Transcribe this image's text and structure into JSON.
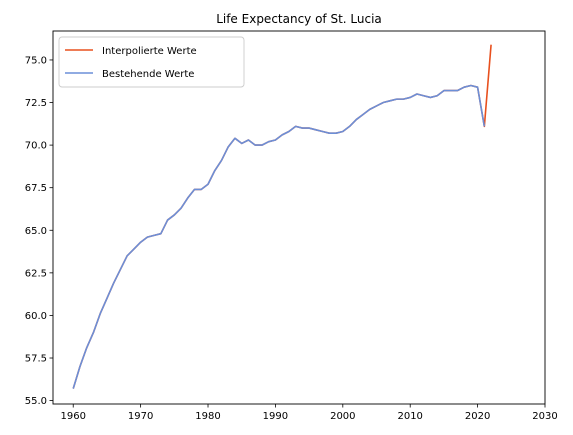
{
  "chart_data": {
    "type": "line",
    "title": "Life Expectancy of St. Lucia",
    "xlabel": "",
    "ylabel": "",
    "xlim": [
      1957,
      2030
    ],
    "ylim": [
      54.8,
      76.7
    ],
    "xticks": [
      1960,
      1970,
      1980,
      1990,
      2000,
      2010,
      2020,
      2030
    ],
    "yticks": [
      55.0,
      57.5,
      60.0,
      62.5,
      65.0,
      67.5,
      70.0,
      72.5,
      75.0
    ],
    "grid": false,
    "legend_position": "top-left",
    "series": [
      {
        "name": "Interpolierte Werte",
        "color": "#e8501e",
        "x": [
          1960,
          1961,
          1962,
          1963,
          1964,
          1965,
          1966,
          1967,
          1968,
          1969,
          1970,
          1971,
          1972,
          1973,
          1974,
          1975,
          1976,
          1977,
          1978,
          1979,
          1980,
          1981,
          1982,
          1983,
          1984,
          1985,
          1986,
          1987,
          1988,
          1989,
          1990,
          1991,
          1992,
          1993,
          1994,
          1995,
          1996,
          1997,
          1998,
          1999,
          2000,
          2001,
          2002,
          2003,
          2004,
          2005,
          2006,
          2007,
          2008,
          2009,
          2010,
          2011,
          2012,
          2013,
          2014,
          2015,
          2016,
          2017,
          2018,
          2019,
          2020,
          2021,
          2022
        ],
        "y": [
          55.7,
          57.0,
          58.1,
          59.0,
          60.1,
          61.0,
          61.9,
          62.7,
          63.5,
          63.9,
          64.3,
          64.6,
          64.7,
          64.8,
          65.6,
          65.9,
          66.3,
          66.9,
          67.4,
          67.4,
          67.7,
          68.5,
          69.1,
          69.9,
          70.4,
          70.1,
          70.3,
          70.0,
          70.0,
          70.2,
          70.3,
          70.6,
          70.8,
          71.1,
          71.0,
          71.0,
          70.9,
          70.8,
          70.7,
          70.7,
          70.8,
          71.1,
          71.5,
          71.8,
          72.1,
          72.3,
          72.5,
          72.6,
          72.7,
          72.7,
          72.8,
          73.0,
          72.9,
          72.8,
          72.9,
          73.2,
          73.2,
          73.2,
          73.4,
          73.5,
          73.4,
          71.1,
          75.9
        ]
      },
      {
        "name": "Bestehende Werte",
        "color": "#6b8fd8",
        "x": [
          1960,
          1961,
          1962,
          1963,
          1964,
          1965,
          1966,
          1967,
          1968,
          1969,
          1970,
          1971,
          1972,
          1973,
          1974,
          1975,
          1976,
          1977,
          1978,
          1979,
          1980,
          1981,
          1982,
          1983,
          1984,
          1985,
          1986,
          1987,
          1988,
          1989,
          1990,
          1991,
          1992,
          1993,
          1994,
          1995,
          1996,
          1997,
          1998,
          1999,
          2000,
          2001,
          2002,
          2003,
          2004,
          2005,
          2006,
          2007,
          2008,
          2009,
          2010,
          2011,
          2012,
          2013,
          2014,
          2015,
          2016,
          2017,
          2018,
          2019,
          2020,
          2021
        ],
        "y": [
          55.7,
          57.0,
          58.1,
          59.0,
          60.1,
          61.0,
          61.9,
          62.7,
          63.5,
          63.9,
          64.3,
          64.6,
          64.7,
          64.8,
          65.6,
          65.9,
          66.3,
          66.9,
          67.4,
          67.4,
          67.7,
          68.5,
          69.1,
          69.9,
          70.4,
          70.1,
          70.3,
          70.0,
          70.0,
          70.2,
          70.3,
          70.6,
          70.8,
          71.1,
          71.0,
          71.0,
          70.9,
          70.8,
          70.7,
          70.7,
          70.8,
          71.1,
          71.5,
          71.8,
          72.1,
          72.3,
          72.5,
          72.6,
          72.7,
          72.7,
          72.8,
          73.0,
          72.9,
          72.8,
          72.9,
          73.2,
          73.2,
          73.2,
          73.4,
          73.5,
          73.4,
          71.1
        ]
      }
    ]
  }
}
